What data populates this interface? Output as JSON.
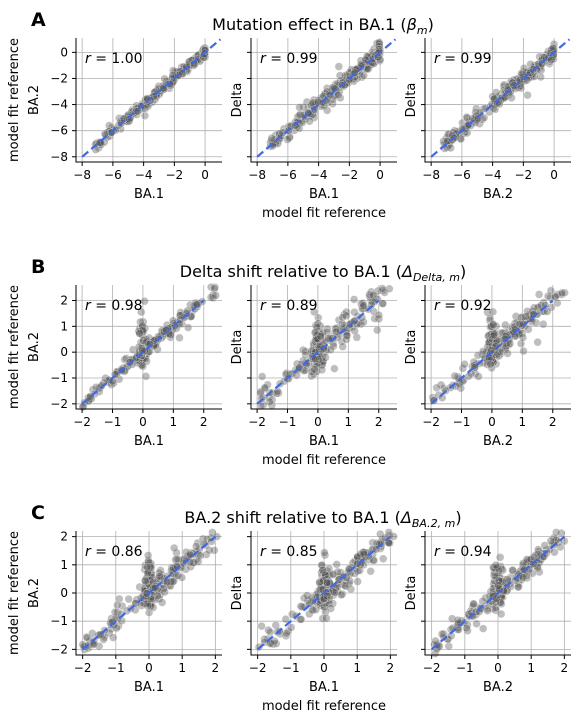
{
  "figure": {
    "x_reference_label": "model fit reference",
    "y_reference_label": "model fit reference"
  },
  "colors": {
    "points": "#555555",
    "diagonal": "#4169e1",
    "grid": "#b0b0b0"
  },
  "chart_data": [
    {
      "type": "scatter",
      "letter": "A",
      "title": "Mutation effect in BA.1 (βm)",
      "title_main": "Mutation effect in BA.1 (",
      "title_symbol": "β",
      "title_sub": "m",
      "title_end": ")",
      "lim": [
        -8.4,
        1.1
      ],
      "ticks": [
        -8,
        -6,
        -4,
        -2,
        0
      ],
      "grid": true,
      "panels": [
        {
          "xlabel": "BA.1",
          "ylabel": "BA.2",
          "r_label": "r = 1.00",
          "r": 1.0,
          "noise": 0.18,
          "scatter": 0.3
        },
        {
          "xlabel": "BA.1",
          "ylabel": "Delta",
          "r_label": "r = 0.99",
          "r": 0.99,
          "noise": 0.3,
          "scatter": 0.6
        },
        {
          "xlabel": "BA.2",
          "ylabel": "Delta",
          "r_label": "r = 0.99",
          "r": 0.99,
          "noise": 0.3,
          "scatter": 0.6
        }
      ]
    },
    {
      "type": "scatter",
      "letter": "B",
      "title": "Delta shift relative to BA.1 (ΔDelta, m)",
      "title_main": "Delta shift relative to BA.1 (",
      "title_symbol": "Δ",
      "title_sub": "Delta, m",
      "title_end": ")",
      "lim": [
        -2.2,
        2.6
      ],
      "ticks": [
        -2,
        -1,
        0,
        1,
        2
      ],
      "grid": true,
      "panels": [
        {
          "xlabel": "BA.1",
          "ylabel": "BA.2",
          "r_label": "r = 0.98",
          "r": 0.98,
          "noise": 0.12,
          "scatter": 0.2
        },
        {
          "xlabel": "BA.1",
          "ylabel": "Delta",
          "r_label": "r = 0.89",
          "r": 0.89,
          "noise": 0.3,
          "scatter": 0.5
        },
        {
          "xlabel": "BA.2",
          "ylabel": "Delta",
          "r_label": "r = 0.92",
          "r": 0.92,
          "noise": 0.25,
          "scatter": 0.4
        }
      ]
    },
    {
      "type": "scatter",
      "letter": "C",
      "title": "BA.2 shift relative to BA.1 (ΔBA.2, m)",
      "title_main": "BA.2 shift relative to BA.1 (",
      "title_symbol": "Δ",
      "title_sub": "BA.2, m",
      "title_end": ")",
      "lim": [
        -2.2,
        2.2
      ],
      "ticks": [
        -2,
        -1,
        0,
        1,
        2
      ],
      "grid": true,
      "panels": [
        {
          "xlabel": "BA.1",
          "ylabel": "BA.2",
          "r_label": "r = 0.86",
          "r": 0.86,
          "noise": 0.25,
          "scatter": 0.45
        },
        {
          "xlabel": "BA.1",
          "ylabel": "Delta",
          "r_label": "r = 0.85",
          "r": 0.85,
          "noise": 0.25,
          "scatter": 0.5
        },
        {
          "xlabel": "BA.2",
          "ylabel": "Delta",
          "r_label": "r = 0.94",
          "r": 0.94,
          "noise": 0.18,
          "scatter": 0.3
        }
      ]
    }
  ]
}
